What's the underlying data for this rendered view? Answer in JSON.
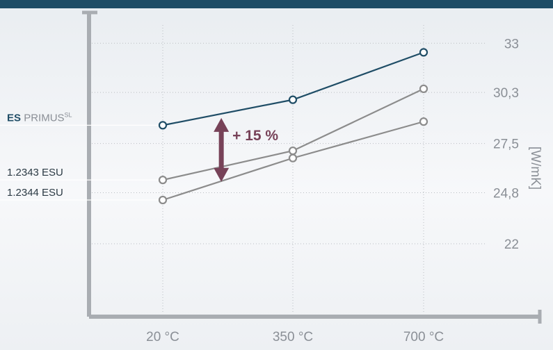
{
  "chart_data": {
    "type": "line",
    "categories": [
      "20 °C",
      "350 °C",
      "700 °C"
    ],
    "ylabel": "[W/mK]",
    "y_ticks": [
      "33",
      "30,3",
      "27,5",
      "24,8",
      "22"
    ],
    "ylim": [
      18,
      34
    ],
    "grid": true,
    "series": [
      {
        "name_bold": "ES",
        "name": "PRIMUS",
        "name_sup": "SL",
        "values": [
          28.5,
          29.9,
          32.5
        ],
        "color": "#1f4d66"
      },
      {
        "name": "1.2343 ESU",
        "values": [
          25.5,
          27.1,
          30.5
        ],
        "color": "#8c8c8c"
      },
      {
        "name": "1.2344 ESU",
        "values": [
          24.4,
          26.7,
          28.7
        ],
        "color": "#8c8c8c"
      }
    ],
    "annotation": {
      "text": "+ 15 %",
      "category_index": 0.45,
      "from": 25.4,
      "to": 28.9,
      "color": "#774258"
    }
  }
}
